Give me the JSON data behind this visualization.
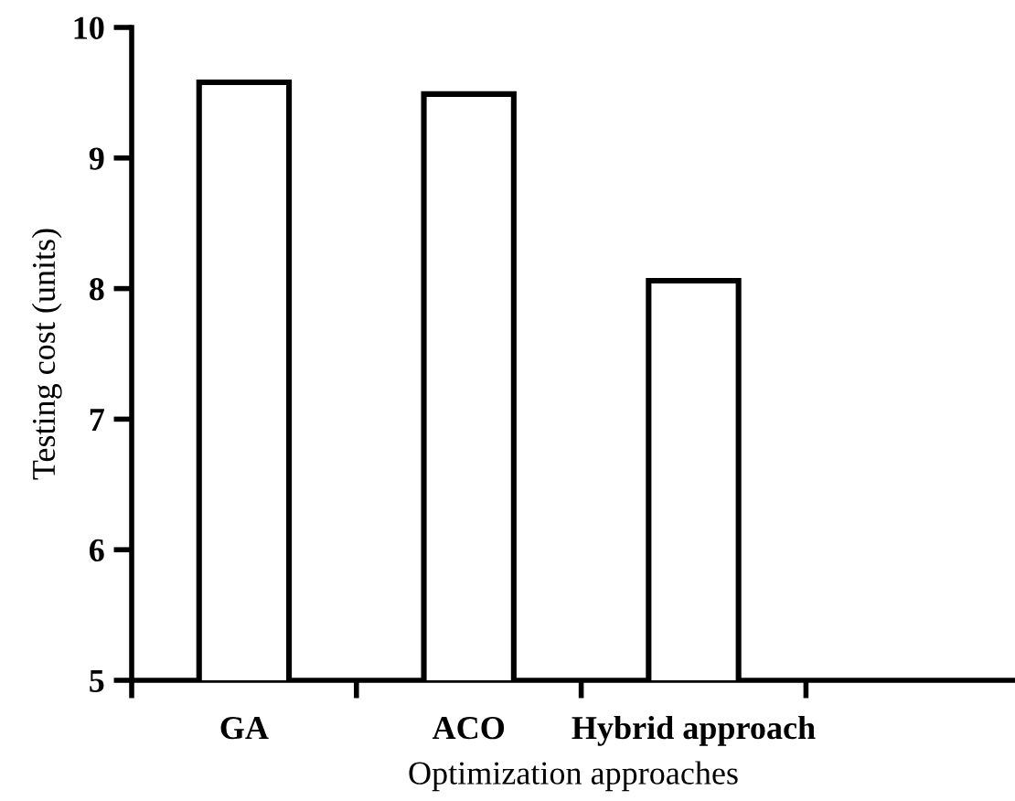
{
  "chart_data": {
    "type": "bar",
    "xlabel": "Optimization approaches",
    "ylabel": "Testing cost (units)",
    "categories": [
      "GA",
      "ACO",
      "Hybrid approach"
    ],
    "values": [
      9.58,
      9.49,
      8.06
    ],
    "color": "#ffffff",
    "ylim": [
      5,
      10
    ],
    "yticks": [
      5,
      6,
      7,
      8,
      9,
      10
    ],
    "grid": false,
    "legend": false
  }
}
